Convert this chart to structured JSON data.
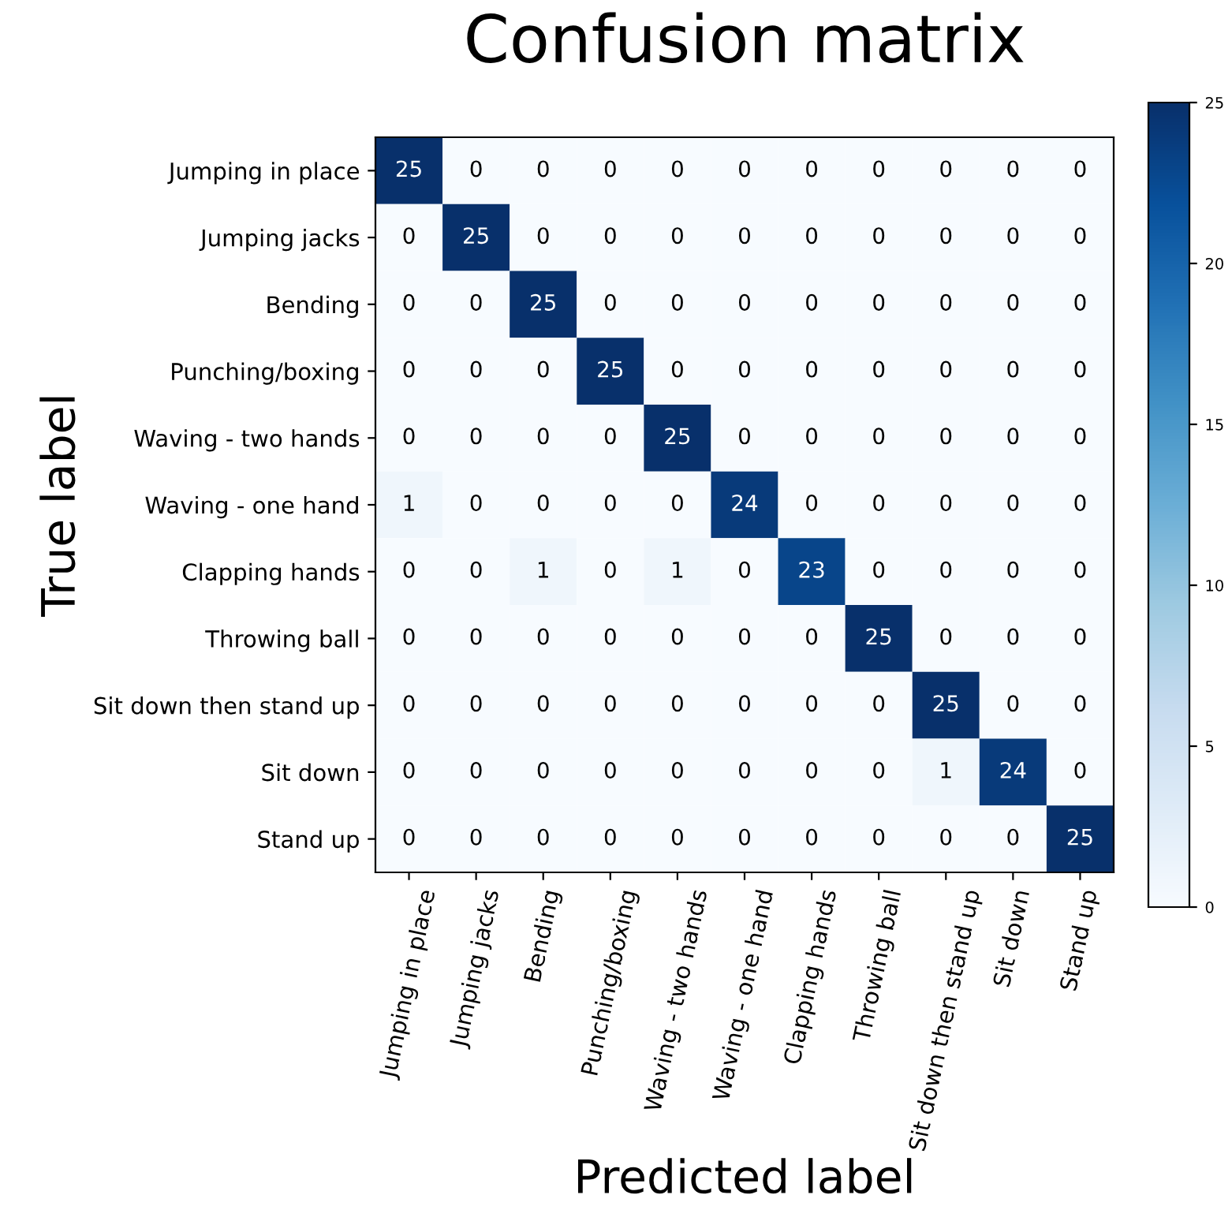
{
  "chart_data": {
    "type": "heatmap",
    "title": "Confusion matrix",
    "xlabel": "Predicted label",
    "ylabel": "True label",
    "categories": [
      "Jumping in place",
      "Jumping jacks",
      "Bending",
      "Punching/boxing",
      "Waving - two hands",
      "Waving - one hand",
      "Clapping hands",
      "Throwing ball",
      "Sit down then stand up",
      "Sit down",
      "Stand up"
    ],
    "y_categories": [
      "Jumping in place",
      "Jumping jacks",
      "Bending",
      "Punching/boxing",
      "Waving - two hands",
      "Waving - one hand",
      "Clapping hands",
      "Throwing ball",
      "Sit down then stand up",
      "Sit down",
      "Stand up"
    ],
    "cells": [
      [
        25,
        0,
        0,
        0,
        0,
        0,
        0,
        0,
        0,
        0,
        0
      ],
      [
        0,
        25,
        0,
        0,
        0,
        0,
        0,
        0,
        0,
        0,
        0
      ],
      [
        0,
        0,
        25,
        0,
        0,
        0,
        0,
        0,
        0,
        0,
        0
      ],
      [
        0,
        0,
        0,
        25,
        0,
        0,
        0,
        0,
        0,
        0,
        0
      ],
      [
        0,
        0,
        0,
        0,
        25,
        0,
        0,
        0,
        0,
        0,
        0
      ],
      [
        1,
        0,
        0,
        0,
        0,
        24,
        0,
        0,
        0,
        0,
        0
      ],
      [
        0,
        0,
        1,
        0,
        1,
        0,
        23,
        0,
        0,
        0,
        0
      ],
      [
        0,
        0,
        0,
        0,
        0,
        0,
        0,
        25,
        0,
        0,
        0
      ],
      [
        0,
        0,
        0,
        0,
        0,
        0,
        0,
        0,
        25,
        0,
        0
      ],
      [
        0,
        0,
        0,
        0,
        0,
        0,
        0,
        0,
        1,
        24,
        0
      ],
      [
        0,
        0,
        0,
        0,
        0,
        0,
        0,
        0,
        0,
        0,
        25
      ]
    ],
    "clim": [
      0,
      25
    ],
    "cticks": [
      0,
      5,
      10,
      15,
      20,
      25
    ],
    "data_labels": true
  }
}
